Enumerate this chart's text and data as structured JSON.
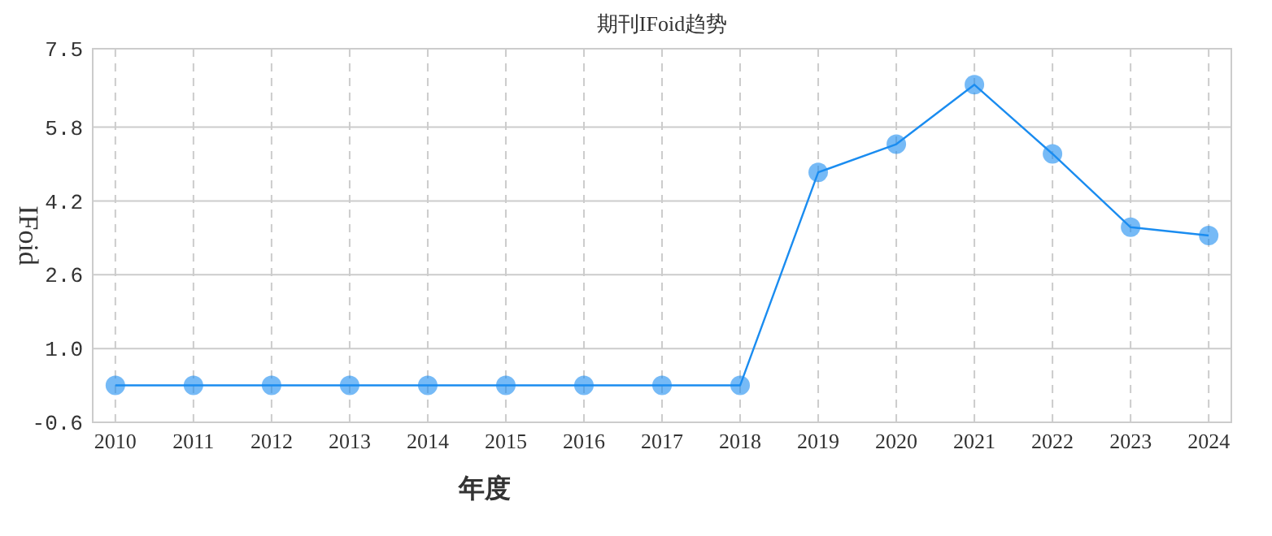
{
  "chart_data": {
    "type": "line",
    "title": "期刊IFoid趋势",
    "xlabel": "年度",
    "ylabel": "IFoid",
    "categories": [
      "2010",
      "2011",
      "2012",
      "2013",
      "2014",
      "2015",
      "2016",
      "2017",
      "2018",
      "2019",
      "2020",
      "2021",
      "2022",
      "2023",
      "2024"
    ],
    "series": [
      {
        "color": "#1a8cf0",
        "values": [
          0.2,
          0.2,
          0.2,
          0.2,
          0.2,
          0.2,
          0.2,
          0.2,
          0.2,
          4.82,
          5.43,
          6.72,
          5.22,
          3.63,
          3.45
        ]
      }
    ],
    "ylim": [
      -0.6,
      7.5
    ],
    "yticks": [
      -0.6,
      {
        "value": 1,
        "label": "1.0"
      },
      2.6,
      4.2,
      5.8,
      7.5
    ],
    "grid": true,
    "marker": "circle",
    "line_style": "solid"
  }
}
